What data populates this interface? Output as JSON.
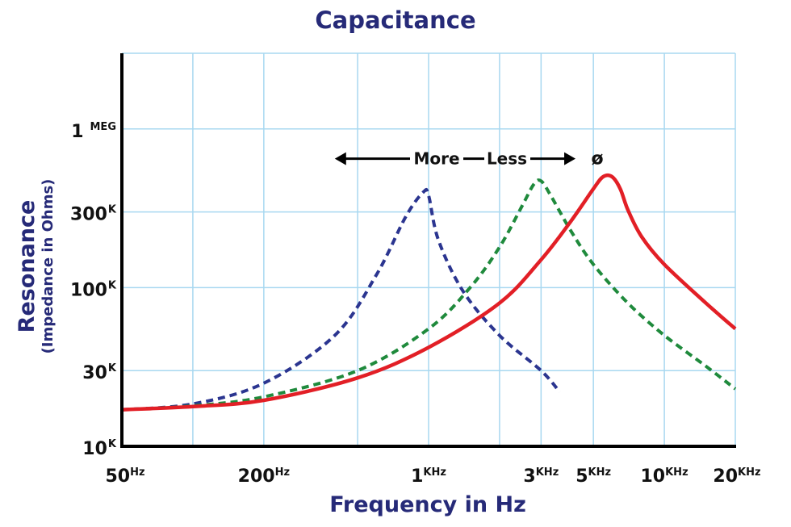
{
  "chart_data": {
    "type": "line",
    "title": "Capacitance",
    "xlabel": "Frequency in Hz",
    "ylabel": "Resonance",
    "ylabel_sub": "(Impedance in Ohms)",
    "x_scale": "log",
    "y_scale": "log",
    "xlim": [
      50,
      20000
    ],
    "ylim": [
      10000,
      3000000
    ],
    "x_ticks": [
      {
        "value": 50,
        "num": "50",
        "unit": "Hz"
      },
      {
        "value": 200,
        "num": "200",
        "unit": "Hz"
      },
      {
        "value": 1000,
        "num": "1",
        "unit": "KHz"
      },
      {
        "value": 3000,
        "num": "3",
        "unit": "KHz"
      },
      {
        "value": 5000,
        "num": "5",
        "unit": "KHz"
      },
      {
        "value": 10000,
        "num": "10",
        "unit": "KHz"
      },
      {
        "value": 20000,
        "num": "20",
        "unit": "KHz"
      }
    ],
    "y_ticks": [
      {
        "value": 10000,
        "num": "10",
        "unit": "K"
      },
      {
        "value": 30000,
        "num": "30",
        "unit": "K"
      },
      {
        "value": 100000,
        "num": "100",
        "unit": "K"
      },
      {
        "value": 300000,
        "num": "300",
        "unit": "K"
      },
      {
        "value": 1000000,
        "num": "1",
        "unit": "MEG"
      }
    ],
    "grid": true,
    "series": [
      {
        "color": "#2b3590",
        "dash": true,
        "x": [
          50,
          100,
          200,
          400,
          600,
          800,
          950,
          1000,
          1100,
          1400,
          2000,
          3000,
          3600
        ],
        "y": [
          17000,
          18500,
          25000,
          50000,
          120000,
          280000,
          400000,
          380000,
          200000,
          95000,
          50000,
          30000,
          22000
        ]
      },
      {
        "color": "#1f8a3c",
        "dash": true,
        "x": [
          50,
          100,
          200,
          500,
          1000,
          1500,
          2000,
          2500,
          2800,
          3000,
          3300,
          4000,
          5000,
          7000,
          10000,
          15000,
          20000
        ],
        "y": [
          17000,
          18000,
          20500,
          30000,
          55000,
          100000,
          180000,
          330000,
          450000,
          470000,
          380000,
          230000,
          140000,
          80000,
          50000,
          32000,
          23000
        ]
      },
      {
        "color": "#e21f26",
        "dash": false,
        "x": [
          50,
          100,
          200,
          500,
          1000,
          2000,
          3000,
          4000,
          5000,
          5500,
          6000,
          6500,
          7000,
          8000,
          10000,
          15000,
          20000
        ],
        "y": [
          17000,
          17800,
          19500,
          27000,
          42000,
          80000,
          150000,
          260000,
          420000,
          500000,
          500000,
          420000,
          310000,
          210000,
          140000,
          80000,
          55000
        ]
      }
    ],
    "annotation": {
      "more": "More",
      "less": "Less",
      "symbol": "ø",
      "arrow_from": 400,
      "arrow_to": 4200,
      "label_y": 650000
    }
  }
}
